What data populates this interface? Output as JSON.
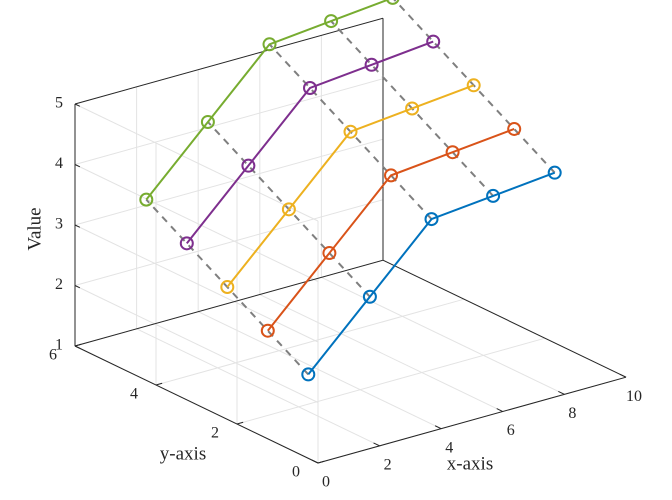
{
  "chart_data": {
    "type": "line",
    "projection": "3d",
    "title": "",
    "xlabel": "x-axis",
    "ylabel": "y-axis",
    "zlabel": "Value",
    "xlim": [
      0,
      10
    ],
    "ylim": [
      0,
      6
    ],
    "zlim": [
      1,
      5
    ],
    "xticks": [
      "0",
      "2",
      "4",
      "6",
      "8",
      "10"
    ],
    "yticks": [
      "0",
      "2",
      "4",
      "6"
    ],
    "zticks": [
      "1",
      "2",
      "3",
      "4",
      "5"
    ],
    "grid": true,
    "x": [
      1,
      3,
      5,
      7,
      9
    ],
    "series": [
      {
        "y": 1,
        "values": [
          2.0,
          3.0,
          4.0,
          4.1,
          4.2
        ],
        "color": "#0072BD"
      },
      {
        "y": 2,
        "values": [
          2.4,
          3.4,
          4.4,
          4.5,
          4.6
        ],
        "color": "#D95319"
      },
      {
        "y": 3,
        "values": [
          2.8,
          3.8,
          4.8,
          4.9,
          5.0
        ],
        "color": "#EDB120"
      },
      {
        "y": 4,
        "values": [
          3.2,
          4.2,
          5.2,
          5.3,
          5.4
        ],
        "color": "#7E2F8E"
      },
      {
        "y": 5,
        "values": [
          3.6,
          4.6,
          5.6,
          5.7,
          5.8
        ],
        "color": "#77AC30"
      }
    ],
    "connector_style": "dashed-gray",
    "marker": "circle"
  }
}
